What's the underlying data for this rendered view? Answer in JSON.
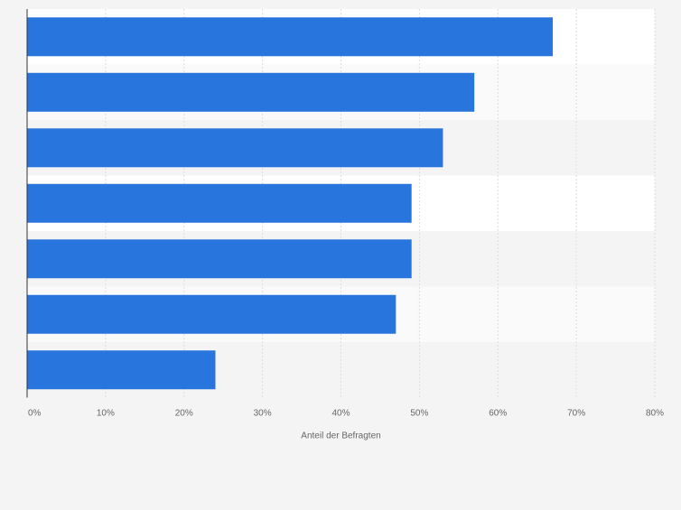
{
  "chart_data": {
    "type": "bar",
    "orientation": "horizontal",
    "categories": [
      "",
      "",
      "",
      "",
      "",
      "",
      ""
    ],
    "values": [
      67,
      57,
      53,
      49,
      49,
      47,
      24
    ],
    "x_ticks": [
      0,
      10,
      20,
      30,
      40,
      50,
      60,
      70,
      80
    ],
    "tick_suffix": "%",
    "xlim": [
      0,
      80
    ],
    "xlabel": "Anteil der Befragten",
    "ylabel": "",
    "title": "",
    "grid": true,
    "legend": "none",
    "colors": {
      "bar": "#2876dd",
      "page_background": "#f4f4f4",
      "row_light": "#ffffff",
      "row_alt": "#fafafa",
      "row_dark": "#f4f4f4",
      "grid": "#dddddd",
      "axis": "#333333",
      "tick_text": "#666666"
    }
  }
}
